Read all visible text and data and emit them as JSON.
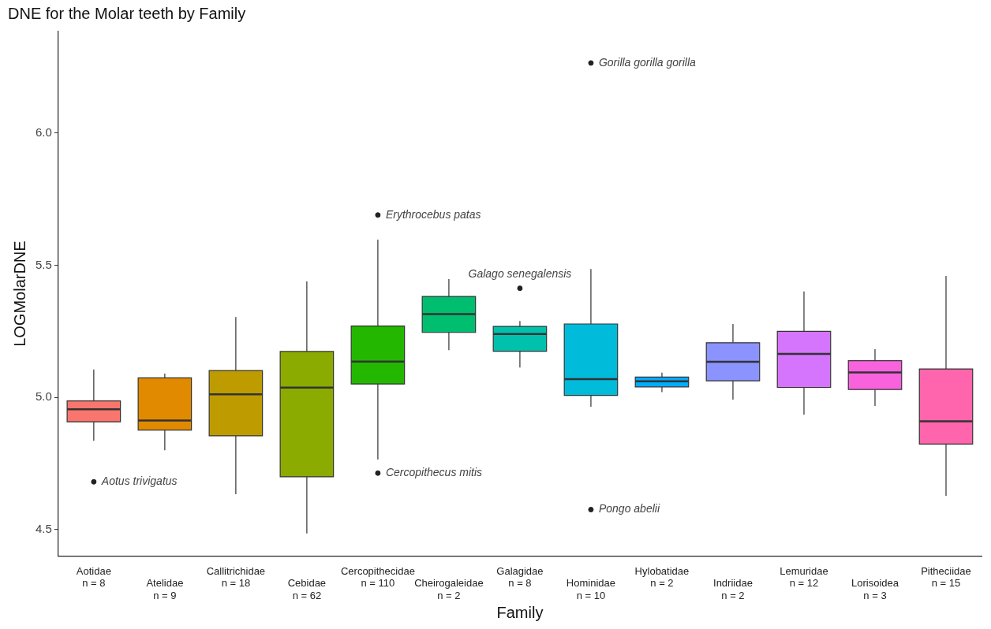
{
  "chart_data": {
    "type": "box",
    "title": "DNE for the Molar teeth by Family",
    "xlabel": "Family",
    "ylabel": "LOGMolarDNE",
    "categories": [
      "Aotidae\nn = 8",
      "Atelidae\nn = 9",
      "Callitrichidae\nn = 18",
      "Cebidae\nn = 62",
      "Cercopithecidae\nn = 110",
      "Cheirogaleidae\nn = 2",
      "Galagidae\nn = 8",
      "Hominidae\nn = 10",
      "Hylobatidae\nn = 2",
      "Indriidae\nn = 2",
      "Lemuridae\nn = 12",
      "Lorisoidea\nn = 3",
      "Pitheciidae\nn = 15"
    ],
    "colors": [
      "#f8766d",
      "#e18a00",
      "#be9c00",
      "#8cab00",
      "#24b700",
      "#00be70",
      "#00c1ab",
      "#00bbda",
      "#00acfc",
      "#8b93ff",
      "#d575fe",
      "#f962dd",
      "#ff65ac"
    ],
    "boxes": [
      {
        "low": 4.836,
        "q1": 4.908,
        "median": 4.955,
        "q3": 4.987,
        "high": 5.106,
        "outliers": [
          4.681
        ]
      },
      {
        "low": 4.8,
        "q1": 4.877,
        "median": 4.913,
        "q3": 5.074,
        "high": 5.09
      },
      {
        "low": 4.634,
        "q1": 4.855,
        "median": 5.012,
        "q3": 5.102,
        "high": 5.304
      },
      {
        "low": 4.486,
        "q1": 4.7,
        "median": 5.037,
        "q3": 5.174,
        "high": 5.439
      },
      {
        "low": 4.765,
        "q1": 5.051,
        "median": 5.136,
        "q3": 5.27,
        "high": 5.597,
        "outliers": [
          5.69,
          4.714
        ]
      },
      {
        "low": 5.179,
        "q1": 5.246,
        "median": 5.315,
        "q3": 5.382,
        "high": 5.448
      },
      {
        "low": 5.113,
        "q1": 5.175,
        "median": 5.24,
        "q3": 5.269,
        "high": 5.289,
        "outliers": [
          5.413
        ]
      },
      {
        "low": 4.965,
        "q1": 5.008,
        "median": 5.069,
        "q3": 5.278,
        "high": 5.486,
        "outliers": [
          6.265,
          4.576
        ]
      },
      {
        "low": 5.02,
        "q1": 5.04,
        "median": 5.061,
        "q3": 5.077,
        "high": 5.094
      },
      {
        "low": 4.992,
        "q1": 5.063,
        "median": 5.135,
        "q3": 5.207,
        "high": 5.278
      },
      {
        "low": 4.935,
        "q1": 5.038,
        "median": 5.165,
        "q3": 5.25,
        "high": 5.401
      },
      {
        "low": 4.968,
        "q1": 5.03,
        "median": 5.095,
        "q3": 5.139,
        "high": 5.183
      },
      {
        "low": 4.628,
        "q1": 4.824,
        "median": 4.91,
        "q3": 5.108,
        "high": 5.46
      }
    ],
    "annotations": [
      "Aotus trivigatus",
      "Erythrocebus patas",
      "Cercopithecus mitis",
      "Galago senegalensis",
      "Gorilla gorilla gorilla",
      "Pongo abelii"
    ],
    "ylim": [
      4.401,
      6.384
    ],
    "yticks": [
      {
        "value": 4.5,
        "label": "4.5"
      },
      {
        "value": 5.0,
        "label": "5.0"
      },
      {
        "value": 5.5,
        "label": "5.5"
      },
      {
        "value": 6.0,
        "label": "6.0"
      }
    ],
    "grid": false,
    "legend": false
  }
}
